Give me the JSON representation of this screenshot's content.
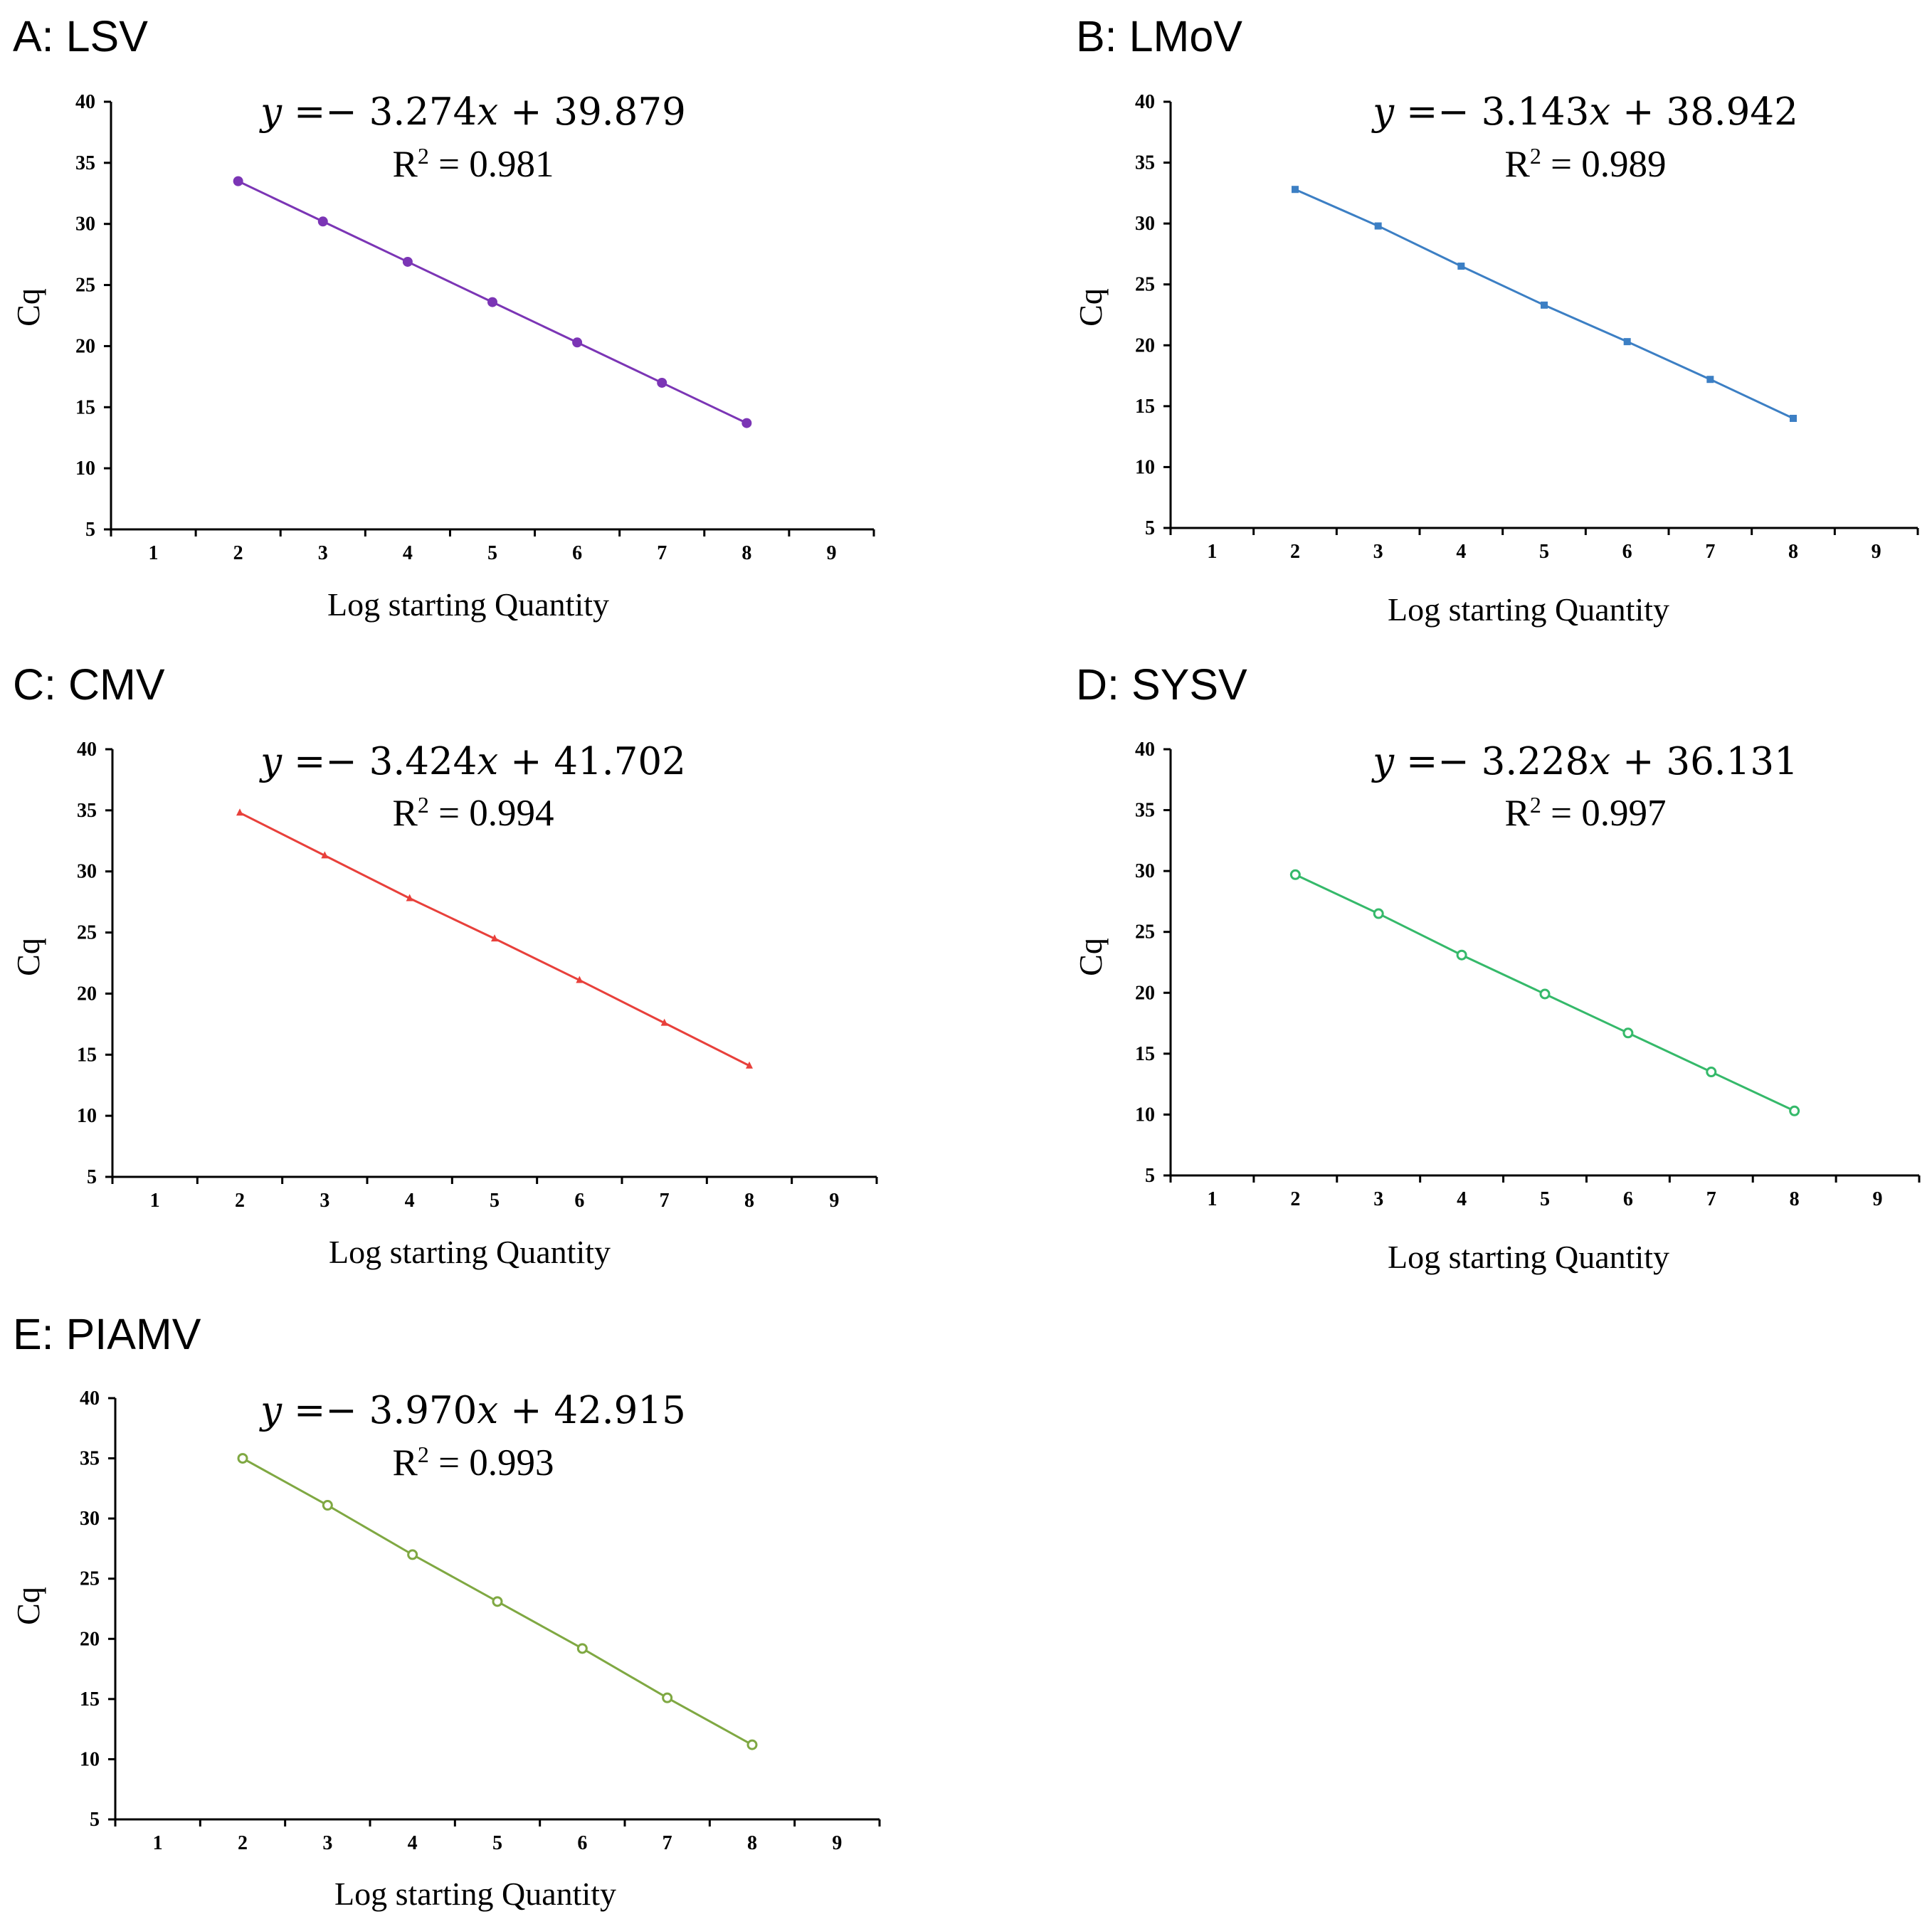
{
  "chart_data": [
    {
      "type": "scatter",
      "panel": "A: LSV",
      "equation_y": "y",
      "equation_rest": " =− 3.274",
      "equation_x": "x",
      "equation_tail": " + 39.879",
      "r2_label": "R",
      "r2_sup": "2",
      "r2_value": " = 0.981",
      "xlabel": "Log starting Quantity",
      "ylabel": "Cq",
      "xticks": [
        "1",
        "2",
        "3",
        "4",
        "5",
        "6",
        "7",
        "8",
        "9"
      ],
      "yticks": [
        "5",
        "10",
        "15",
        "20",
        "25",
        "30",
        "35",
        "40"
      ],
      "xlim": [
        0.5,
        9.5
      ],
      "ylim": [
        5,
        40
      ],
      "series": [
        {
          "name": "LSV",
          "color": "#7b35b5",
          "marker": "filled-circle",
          "x": [
            2,
            3,
            4,
            5,
            6,
            7,
            8
          ],
          "y": [
            33.5,
            30.2,
            26.9,
            23.6,
            20.3,
            17.0,
            13.7
          ]
        }
      ]
    },
    {
      "type": "scatter",
      "panel": "B: LMoV",
      "equation_y": "y",
      "equation_rest": " =− 3.143",
      "equation_x": "x",
      "equation_tail": " + 38.942",
      "r2_label": "R",
      "r2_sup": "2",
      "r2_value": " = 0.989",
      "xlabel": "Log starting Quantity",
      "ylabel": "Cq",
      "xticks": [
        "1",
        "2",
        "3",
        "4",
        "5",
        "6",
        "7",
        "8",
        "9"
      ],
      "yticks": [
        "5",
        "10",
        "15",
        "20",
        "25",
        "30",
        "35",
        "40"
      ],
      "xlim": [
        0.5,
        9.5
      ],
      "ylim": [
        5,
        40
      ],
      "series": [
        {
          "name": "LMoV",
          "color": "#3c7fc4",
          "marker": "filled-square",
          "x": [
            2,
            3,
            4,
            5,
            6,
            7,
            8
          ],
          "y": [
            32.8,
            29.8,
            26.5,
            23.3,
            20.3,
            17.2,
            14.0
          ]
        }
      ]
    },
    {
      "type": "scatter",
      "panel": "C: CMV",
      "equation_y": "y",
      "equation_rest": " =− 3.424",
      "equation_x": "x",
      "equation_tail": " + 41.702",
      "r2_label": "R",
      "r2_sup": "2",
      "r2_value": " = 0.994",
      "xlabel": "Log starting Quantity",
      "ylabel": "Cq",
      "xticks": [
        "1",
        "2",
        "3",
        "4",
        "5",
        "6",
        "7",
        "8",
        "9"
      ],
      "yticks": [
        "5",
        "10",
        "15",
        "20",
        "25",
        "30",
        "35",
        "40"
      ],
      "xlim": [
        0.5,
        9.5
      ],
      "ylim": [
        5,
        40
      ],
      "series": [
        {
          "name": "CMV",
          "color": "#e8403b",
          "marker": "filled-triangle",
          "x": [
            2,
            3,
            4,
            5,
            6,
            7,
            8
          ],
          "y": [
            34.8,
            31.3,
            27.8,
            24.5,
            21.1,
            17.6,
            14.1
          ]
        }
      ]
    },
    {
      "type": "scatter",
      "panel": "D: SYSV",
      "equation_y": "y",
      "equation_rest": " =− 3.228",
      "equation_x": "x",
      "equation_tail": " + 36.131",
      "r2_label": "R",
      "r2_sup": "2",
      "r2_value": " = 0.997",
      "xlabel": "Log starting Quantity",
      "ylabel": "Cq",
      "xticks": [
        "1",
        "2",
        "3",
        "4",
        "5",
        "6",
        "7",
        "8",
        "9"
      ],
      "yticks": [
        "5",
        "10",
        "15",
        "20",
        "25",
        "30",
        "35",
        "40"
      ],
      "xlim": [
        0.5,
        9.5
      ],
      "ylim": [
        5,
        40
      ],
      "series": [
        {
          "name": "SYSV",
          "color": "#35b96a",
          "marker": "open-circle",
          "x": [
            2,
            3,
            4,
            5,
            6,
            7,
            8
          ],
          "y": [
            29.7,
            26.5,
            23.1,
            19.9,
            16.7,
            13.5,
            10.3
          ]
        }
      ]
    },
    {
      "type": "scatter",
      "panel": "E: PIAMV",
      "equation_y": "y",
      "equation_rest": " =− 3.970",
      "equation_x": "x",
      "equation_tail": " + 42.915",
      "r2_label": "R",
      "r2_sup": "2",
      "r2_value": " = 0.993",
      "xlabel": "Log starting Quantity",
      "ylabel": "Cq",
      "xticks": [
        "1",
        "2",
        "3",
        "4",
        "5",
        "6",
        "7",
        "8",
        "9"
      ],
      "yticks": [
        "5",
        "10",
        "15",
        "20",
        "25",
        "30",
        "35",
        "40"
      ],
      "xlim": [
        0.5,
        9.5
      ],
      "ylim": [
        5,
        40
      ],
      "series": [
        {
          "name": "PIAMV",
          "color": "#7fa842",
          "marker": "open-circle",
          "x": [
            2,
            3,
            4,
            5,
            6,
            7,
            8
          ],
          "y": [
            35.0,
            31.1,
            27.0,
            23.1,
            19.2,
            15.1,
            11.2
          ]
        }
      ]
    }
  ]
}
